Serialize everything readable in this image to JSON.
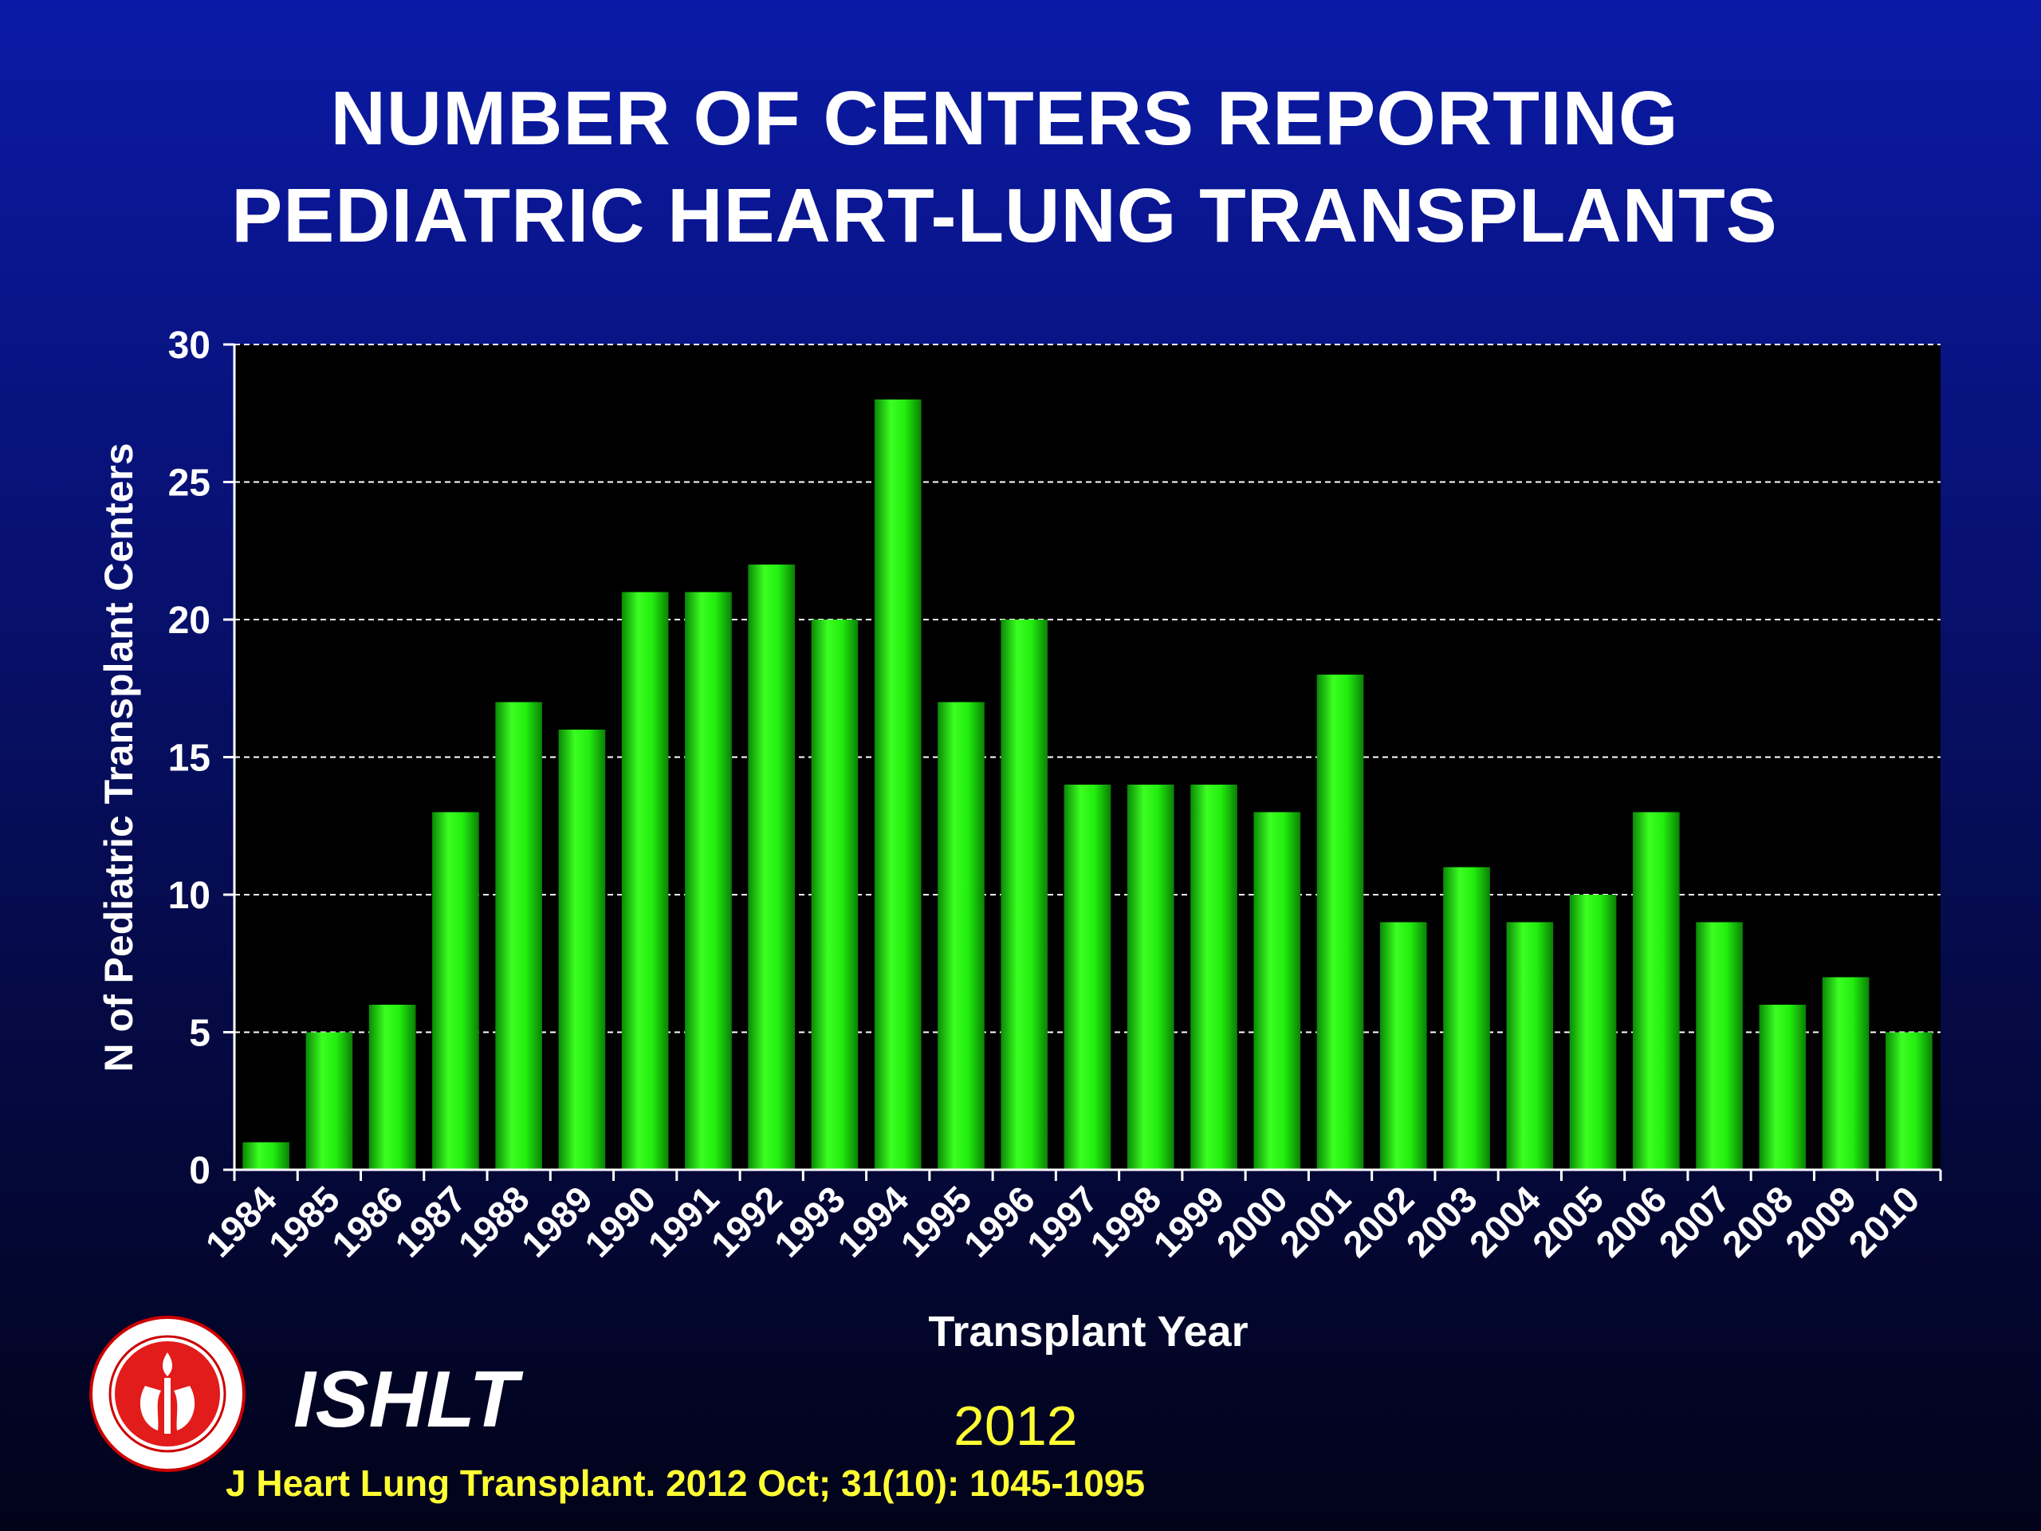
{
  "title_line1": "NUMBER OF CENTERS REPORTING",
  "title_line2": "PEDIATRIC HEART-LUNG TRANSPLANTS",
  "colors": {
    "bar": "#22ee0e",
    "plot_bg": "#000000",
    "axis_text": "#ffffff",
    "footer_text": "#ffff33"
  },
  "chart_data": {
    "type": "bar",
    "xlabel": "Transplant Year",
    "ylabel": "N of Pediatric Transplant Centers",
    "ylim": [
      0,
      30
    ],
    "yticks": [
      0,
      5,
      10,
      15,
      20,
      25,
      30
    ],
    "grid": "horizontal dashed",
    "categories": [
      "1984",
      "1985",
      "1986",
      "1987",
      "1988",
      "1989",
      "1990",
      "1991",
      "1992",
      "1993",
      "1994",
      "1995",
      "1996",
      "1997",
      "1998",
      "1999",
      "2000",
      "2001",
      "2002",
      "2003",
      "2004",
      "2005",
      "2006",
      "2007",
      "2008",
      "2009",
      "2010"
    ],
    "values": [
      1,
      5,
      6,
      13,
      17,
      16,
      21,
      21,
      22,
      20,
      28,
      17,
      20,
      14,
      14,
      14,
      13,
      18,
      9,
      11,
      9,
      10,
      13,
      9,
      6,
      7,
      5
    ]
  },
  "footer": {
    "logo_alt": "ISHLT seal",
    "logo_text": "INTERNATIONAL SOCIETY FOR HEART & LUNG TRANSPLANTATION",
    "brand": "ISHLT",
    "year": "2012",
    "citation": "J Heart Lung Transplant.  2012 Oct; 31(10): 1045-1095"
  }
}
